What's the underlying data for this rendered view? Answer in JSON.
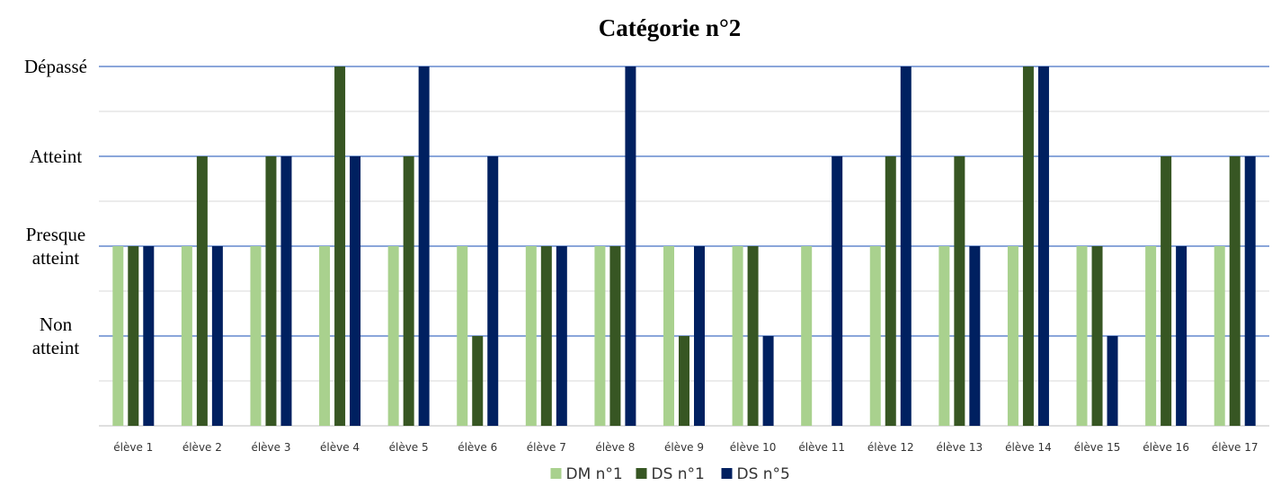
{
  "chart_data": {
    "type": "bar",
    "title": "Catégorie n°2",
    "xlabel": "",
    "ylabel": "",
    "ylim": [
      0,
      4
    ],
    "y_levels": [
      {
        "value": 1,
        "lines": [
          "Non",
          "atteint"
        ]
      },
      {
        "value": 2,
        "lines": [
          "Presque",
          "atteint"
        ]
      },
      {
        "value": 3,
        "lines": [
          "Atteint"
        ]
      },
      {
        "value": 4,
        "lines": [
          "Dépassé"
        ]
      }
    ],
    "grid": true,
    "legend_position": "bottom",
    "categories": [
      "élève 1",
      "élève 2",
      "élève 3",
      "élève 4",
      "élève 5",
      "élève 6",
      "élève 7",
      "élève 8",
      "élève 9",
      "élève 10",
      "élève 11",
      "élève 12",
      "élève 13",
      "élève 14",
      "élève 15",
      "élève 16",
      "élève 17"
    ],
    "series": [
      {
        "name": "DM n°1",
        "color": "#a9d18e",
        "values": [
          2,
          2,
          2,
          2,
          2,
          2,
          2,
          2,
          2,
          2,
          2,
          2,
          2,
          2,
          2,
          2,
          2
        ]
      },
      {
        "name": "DS n°1",
        "color": "#375623",
        "values": [
          2,
          3,
          3,
          4,
          3,
          1,
          2,
          2,
          1,
          2,
          0,
          3,
          3,
          4,
          2,
          3,
          3
        ]
      },
      {
        "name": "DS n°5",
        "color": "#002060",
        "values": [
          2,
          2,
          3,
          3,
          4,
          3,
          2,
          4,
          2,
          1,
          3,
          4,
          2,
          4,
          1,
          2,
          3
        ]
      }
    ],
    "colors": {
      "major_grid": "#4472c4",
      "minor_grid": "#d9d9d9",
      "axis": "#bfbfbf",
      "text": "#000000",
      "tick_text": "#333333"
    }
  }
}
